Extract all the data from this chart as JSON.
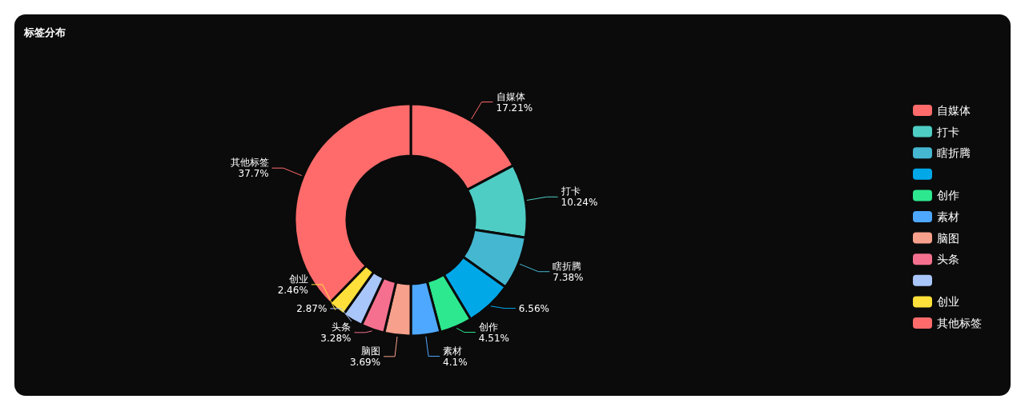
{
  "chart_data": {
    "type": "donut",
    "title": "标签分布",
    "categories": [
      "自媒体",
      "打卡",
      "瞎折腾",
      null,
      "创作",
      "素材",
      "脑图",
      "头条",
      null,
      "创业",
      "其他标签"
    ],
    "values": [
      17.21,
      10.24,
      7.38,
      6.56,
      4.51,
      4.1,
      3.69,
      3.28,
      2.87,
      2.46,
      37.7
    ],
    "value_labels": [
      "17.21%",
      "10.24%",
      "7.38%",
      "6.56%",
      "4.51%",
      "4.1%",
      "3.69%",
      "3.28%",
      "2.87%",
      "2.46%",
      "37.7%"
    ],
    "colors": [
      "#ff6b6b",
      "#4ecdc4",
      "#45b7d1",
      "#00a8e8",
      "#2ee88f",
      "#4ea8ff",
      "#f7a08c",
      "#f5708f",
      "#a9c6fb",
      "#ffe03a",
      "#ff6b6b"
    ],
    "legend": "right"
  }
}
